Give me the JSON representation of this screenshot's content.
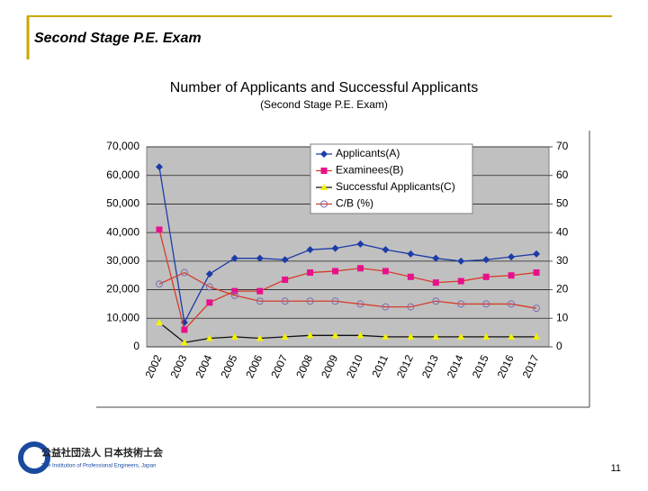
{
  "header": {
    "title": "Second Stage P.E. Exam"
  },
  "logo": {
    "name": "公益社団法人 日本技術士会",
    "subtitle": "The Institution of Professional Engineers, Japan"
  },
  "page_number": "11",
  "chart_data": {
    "type": "line",
    "title": "Number of Applicants and Successful Applicants",
    "subtitle": "(Second Stage  P.E. Exam)",
    "categories": [
      "2002",
      "2003",
      "2004",
      "2005",
      "2006",
      "2007",
      "2008",
      "2009",
      "2010",
      "2011",
      "2012",
      "2013",
      "2014",
      "2015",
      "2016",
      "2017"
    ],
    "series": [
      {
        "name": "Applicants(A)",
        "color": "#1c3ca8",
        "marker": "diamond",
        "values": [
          63000,
          8500,
          25500,
          31000,
          31000,
          30500,
          34000,
          34500,
          36000,
          34000,
          32500,
          31000,
          30000,
          30500,
          31500,
          32500
        ]
      },
      {
        "name": "Examinees(B)",
        "color": "#e8108c",
        "line_color": "#d83a2a",
        "marker": "square",
        "values": [
          41000,
          6000,
          15500,
          19500,
          19500,
          23500,
          26000,
          26500,
          27500,
          26500,
          24500,
          22500,
          23000,
          24500,
          25000,
          26000
        ]
      },
      {
        "name": "Successful Applicants(C)",
        "color": "#f2f200",
        "line_color": "#111111",
        "marker": "triangle",
        "values": [
          8500,
          1500,
          3000,
          3500,
          3000,
          3500,
          4000,
          4000,
          4000,
          3500,
          3500,
          3500,
          3500,
          3500,
          3500,
          3500
        ]
      },
      {
        "name": "C/B (%)",
        "color": "#7a6fb0",
        "line_color": "#d83a2a",
        "marker": "circle",
        "axis": "y2",
        "values": [
          22,
          26,
          21,
          18,
          16,
          16,
          16,
          16,
          15,
          14,
          14,
          16,
          15,
          15,
          15,
          13.5
        ]
      }
    ],
    "ylim": [
      0,
      70000
    ],
    "yticks": [
      {
        "value": 0,
        "label": "0"
      },
      {
        "value": 10000,
        "label": "10,000"
      },
      {
        "value": 20000,
        "label": "20,000"
      },
      {
        "value": 30000,
        "label": "30,000"
      },
      {
        "value": 40000,
        "label": "40,000"
      },
      {
        "value": 50000,
        "label": "50,000"
      },
      {
        "value": 60000,
        "label": "60,000"
      },
      {
        "value": 70000,
        "label": "70,000"
      }
    ],
    "y2lim": [
      0,
      70
    ],
    "y2ticks": [
      0,
      10,
      20,
      30,
      40,
      50,
      60,
      70
    ],
    "grid": true,
    "legend": "top"
  }
}
